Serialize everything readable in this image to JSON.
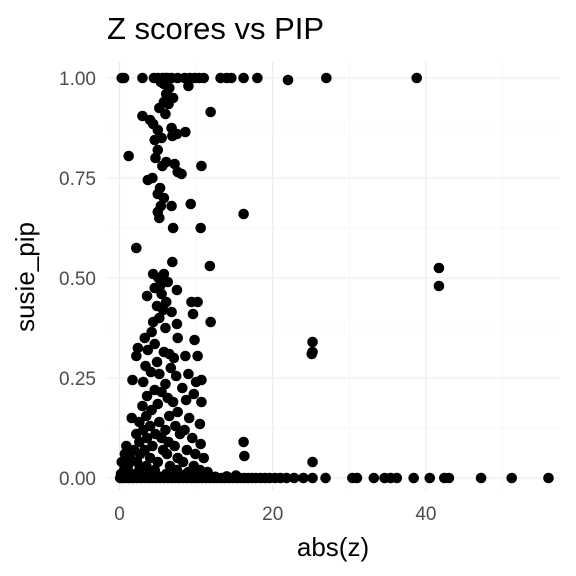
{
  "chart_data": {
    "type": "scatter",
    "title": "Z scores vs PIP",
    "xlabel": "abs(z)",
    "ylabel": "susie_pip",
    "xlim": [
      -1.5,
      57.5
    ],
    "ylim": [
      -0.03,
      1.04
    ],
    "x_ticks": [
      0,
      20,
      40
    ],
    "x_tick_labels": [
      "0",
      "20",
      "40"
    ],
    "y_ticks": [
      0,
      0.25,
      0.5,
      0.75,
      1.0
    ],
    "y_tick_labels": [
      "0.00",
      "0.25",
      "0.50",
      "0.75",
      "1.00"
    ],
    "grid": true,
    "legend": "none",
    "point_color": "#000000",
    "points": [
      [
        0.3,
        1.0
      ],
      [
        0.6,
        1.0
      ],
      [
        3.0,
        1.0
      ],
      [
        4.5,
        1.0
      ],
      [
        5.0,
        1.0
      ],
      [
        5.6,
        1.0
      ],
      [
        6.0,
        1.0
      ],
      [
        6.3,
        1.0
      ],
      [
        6.8,
        1.0
      ],
      [
        7.6,
        1.0
      ],
      [
        8.5,
        1.0
      ],
      [
        9.2,
        1.0
      ],
      [
        9.8,
        1.0
      ],
      [
        10.4,
        1.0
      ],
      [
        11.0,
        1.0
      ],
      [
        13.2,
        1.0
      ],
      [
        14.0,
        1.0
      ],
      [
        14.6,
        1.0
      ],
      [
        16.2,
        1.0
      ],
      [
        18.0,
        1.0
      ],
      [
        22.0,
        0.995
      ],
      [
        27.0,
        1.0
      ],
      [
        38.8,
        1.0
      ],
      [
        5.4,
        0.99
      ],
      [
        5.8,
        0.985
      ],
      [
        6.5,
        0.975
      ],
      [
        9.0,
        0.98
      ],
      [
        6.1,
        0.96
      ],
      [
        7.0,
        0.95
      ],
      [
        5.8,
        0.94
      ],
      [
        6.4,
        0.935
      ],
      [
        5.2,
        0.925
      ],
      [
        6.0,
        0.91
      ],
      [
        11.9,
        0.915
      ],
      [
        3.0,
        0.905
      ],
      [
        4.0,
        0.895
      ],
      [
        4.4,
        0.885
      ],
      [
        5.0,
        0.87
      ],
      [
        6.8,
        0.875
      ],
      [
        7.5,
        0.86
      ],
      [
        5.5,
        0.85
      ],
      [
        4.6,
        0.845
      ],
      [
        6.9,
        0.855
      ],
      [
        8.6,
        0.865
      ],
      [
        5.0,
        0.82
      ],
      [
        4.7,
        0.8
      ],
      [
        1.2,
        0.805
      ],
      [
        5.6,
        0.78
      ],
      [
        6.1,
        0.79
      ],
      [
        7.2,
        0.785
      ],
      [
        10.7,
        0.78
      ],
      [
        7.6,
        0.765
      ],
      [
        8.1,
        0.76
      ],
      [
        3.7,
        0.745
      ],
      [
        4.3,
        0.75
      ],
      [
        5.3,
        0.725
      ],
      [
        5.0,
        0.71
      ],
      [
        5.8,
        0.7
      ],
      [
        5.4,
        0.68
      ],
      [
        6.8,
        0.68
      ],
      [
        9.3,
        0.685
      ],
      [
        5.0,
        0.665
      ],
      [
        5.2,
        0.65
      ],
      [
        16.2,
        0.66
      ],
      [
        7.0,
        0.625
      ],
      [
        10.6,
        0.625
      ],
      [
        2.2,
        0.575
      ],
      [
        6.9,
        0.54
      ],
      [
        11.8,
        0.53
      ],
      [
        4.4,
        0.51
      ],
      [
        5.1,
        0.5
      ],
      [
        5.8,
        0.51
      ],
      [
        5.3,
        0.48
      ],
      [
        6.3,
        0.49
      ],
      [
        4.6,
        0.475
      ],
      [
        7.5,
        0.47
      ],
      [
        5.5,
        0.46
      ],
      [
        3.6,
        0.455
      ],
      [
        6.1,
        0.44
      ],
      [
        9.4,
        0.44
      ],
      [
        10.2,
        0.44
      ],
      [
        4.9,
        0.43
      ],
      [
        5.7,
        0.42
      ],
      [
        6.8,
        0.415
      ],
      [
        9.6,
        0.41
      ],
      [
        5.2,
        0.4
      ],
      [
        4.4,
        0.39
      ],
      [
        7.5,
        0.385
      ],
      [
        11.9,
        0.39
      ],
      [
        6.0,
        0.375
      ],
      [
        4.2,
        0.365
      ],
      [
        3.3,
        0.35
      ],
      [
        7.6,
        0.35
      ],
      [
        9.8,
        0.345
      ],
      [
        4.6,
        0.335
      ],
      [
        2.4,
        0.325
      ],
      [
        3.7,
        0.32
      ],
      [
        5.8,
        0.315
      ],
      [
        6.5,
        0.31
      ],
      [
        2.2,
        0.305
      ],
      [
        7.1,
        0.3
      ],
      [
        8.6,
        0.305
      ],
      [
        10.2,
        0.305
      ],
      [
        4.9,
        0.29
      ],
      [
        3.4,
        0.28
      ],
      [
        6.7,
        0.275
      ],
      [
        5.2,
        0.26
      ],
      [
        4.1,
        0.265
      ],
      [
        7.4,
        0.255
      ],
      [
        9.0,
        0.26
      ],
      [
        1.7,
        0.245
      ],
      [
        3.1,
        0.24
      ],
      [
        6.0,
        0.235
      ],
      [
        10.0,
        0.24
      ],
      [
        10.7,
        0.245
      ],
      [
        8.2,
        0.225
      ],
      [
        4.6,
        0.22
      ],
      [
        5.5,
        0.215
      ],
      [
        9.7,
        0.21
      ],
      [
        3.6,
        0.205
      ],
      [
        6.3,
        0.2
      ],
      [
        7.0,
        0.19
      ],
      [
        8.7,
        0.195
      ],
      [
        3.0,
        0.18
      ],
      [
        5.0,
        0.185
      ],
      [
        10.7,
        0.19
      ],
      [
        4.2,
        0.17
      ],
      [
        7.6,
        0.165
      ],
      [
        1.6,
        0.15
      ],
      [
        3.5,
        0.155
      ],
      [
        6.5,
        0.155
      ],
      [
        9.1,
        0.15
      ],
      [
        2.6,
        0.14
      ],
      [
        5.2,
        0.14
      ],
      [
        10.5,
        0.135
      ],
      [
        4.0,
        0.13
      ],
      [
        7.3,
        0.13
      ],
      [
        3.1,
        0.12
      ],
      [
        6.0,
        0.12
      ],
      [
        8.5,
        0.12
      ],
      [
        2.2,
        0.11
      ],
      [
        4.7,
        0.11
      ],
      [
        7.9,
        0.11
      ],
      [
        3.6,
        0.1
      ],
      [
        5.5,
        0.1
      ],
      [
        9.5,
        0.1
      ],
      [
        2.6,
        0.09
      ],
      [
        6.4,
        0.09
      ],
      [
        10.6,
        0.085
      ],
      [
        16.2,
        0.09
      ],
      [
        0.9,
        0.08
      ],
      [
        4.3,
        0.08
      ],
      [
        7.2,
        0.08
      ],
      [
        1.9,
        0.07
      ],
      [
        3.3,
        0.07
      ],
      [
        5.7,
        0.07
      ],
      [
        8.8,
        0.07
      ],
      [
        0.7,
        0.06
      ],
      [
        2.7,
        0.06
      ],
      [
        6.2,
        0.06
      ],
      [
        9.9,
        0.06
      ],
      [
        16.3,
        0.055
      ],
      [
        1.4,
        0.05
      ],
      [
        4.0,
        0.05
      ],
      [
        7.6,
        0.05
      ],
      [
        11.0,
        0.05
      ],
      [
        0.3,
        0.04
      ],
      [
        2.3,
        0.04
      ],
      [
        5.0,
        0.04
      ],
      [
        8.3,
        0.04
      ],
      [
        25.2,
        0.04
      ],
      [
        1.1,
        0.03
      ],
      [
        3.5,
        0.03
      ],
      [
        6.6,
        0.03
      ],
      [
        9.7,
        0.03
      ],
      [
        0.6,
        0.02
      ],
      [
        2.6,
        0.02
      ],
      [
        4.6,
        0.02
      ],
      [
        7.5,
        0.02
      ],
      [
        10.5,
        0.02
      ],
      [
        11.5,
        0.015
      ],
      [
        0.2,
        0.01
      ],
      [
        1.6,
        0.01
      ],
      [
        3.9,
        0.01
      ],
      [
        6.1,
        0.01
      ],
      [
        8.7,
        0.01
      ],
      [
        25.2,
        0.34
      ],
      [
        25.2,
        0.315
      ],
      [
        25.1,
        0.31
      ],
      [
        41.7,
        0.525
      ],
      [
        41.7,
        0.48
      ],
      [
        0.1,
        0.0
      ],
      [
        0.4,
        0.0
      ],
      [
        0.8,
        0.0
      ],
      [
        1.3,
        0.0
      ],
      [
        1.8,
        0.0
      ],
      [
        2.3,
        0.0
      ],
      [
        2.8,
        0.0
      ],
      [
        3.3,
        0.0
      ],
      [
        3.8,
        0.0
      ],
      [
        4.3,
        0.0
      ],
      [
        4.8,
        0.0
      ],
      [
        5.3,
        0.0
      ],
      [
        5.8,
        0.0
      ],
      [
        6.3,
        0.0
      ],
      [
        6.8,
        0.0
      ],
      [
        7.3,
        0.0
      ],
      [
        7.8,
        0.0
      ],
      [
        8.3,
        0.0
      ],
      [
        8.8,
        0.0
      ],
      [
        9.3,
        0.0
      ],
      [
        9.8,
        0.0
      ],
      [
        10.3,
        0.0
      ],
      [
        10.8,
        0.0
      ],
      [
        11.3,
        0.0
      ],
      [
        11.8,
        0.0
      ],
      [
        12.3,
        0.0
      ],
      [
        12.8,
        0.0
      ],
      [
        13.3,
        0.0
      ],
      [
        13.8,
        0.0
      ],
      [
        14.3,
        0.0
      ],
      [
        14.8,
        0.0
      ],
      [
        15.3,
        0.0
      ],
      [
        15.8,
        0.0
      ],
      [
        16.3,
        0.0
      ],
      [
        16.8,
        0.0
      ],
      [
        17.3,
        0.0
      ],
      [
        17.8,
        0.0
      ],
      [
        18.4,
        0.0
      ],
      [
        19.0,
        0.0
      ],
      [
        19.6,
        0.0
      ],
      [
        20.3,
        0.0
      ],
      [
        21.0,
        0.0
      ],
      [
        21.8,
        0.0
      ],
      [
        22.8,
        0.0
      ],
      [
        24.0,
        0.0
      ],
      [
        25.2,
        0.0
      ],
      [
        26.9,
        0.0
      ],
      [
        30.4,
        0.0
      ],
      [
        31.0,
        0.0
      ],
      [
        33.2,
        0.0
      ],
      [
        34.6,
        0.0
      ],
      [
        35.4,
        0.0
      ],
      [
        36.2,
        0.0
      ],
      [
        38.4,
        0.0
      ],
      [
        40.5,
        0.0
      ],
      [
        42.4,
        0.0
      ],
      [
        43.0,
        0.0
      ],
      [
        47.2,
        0.0
      ],
      [
        51.2,
        0.0
      ],
      [
        56.0,
        0.0
      ],
      [
        2.0,
        0.005
      ],
      [
        3.0,
        0.005
      ],
      [
        5.0,
        0.005
      ],
      [
        6.5,
        0.005
      ],
      [
        8.0,
        0.005
      ],
      [
        9.5,
        0.005
      ],
      [
        11.0,
        0.004
      ],
      [
        12.5,
        0.003
      ],
      [
        14.0,
        0.004
      ],
      [
        15.2,
        0.006
      ],
      [
        0.5,
        0.012
      ],
      [
        1.0,
        0.025
      ],
      [
        0.9,
        0.008
      ],
      [
        9.0,
        0.015
      ],
      [
        10.0,
        0.012
      ]
    ]
  }
}
